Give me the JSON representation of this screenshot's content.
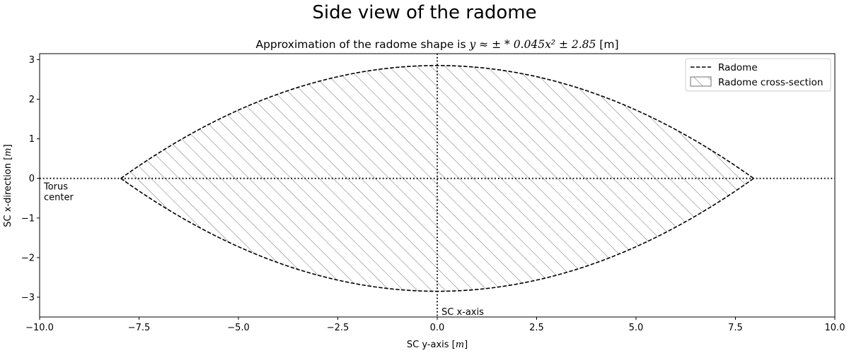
{
  "figure": {
    "suptitle": "Side view of the radome",
    "subtitle": {
      "prefix": "Approximation of the radome shape is ",
      "formula": "y ≈ ± * 0.045x² ± 2.85",
      "unit": " [m]"
    }
  },
  "chart_data": {
    "type": "line",
    "title": "Side view of the radome",
    "subtitle": "Approximation of the radome shape is y ≈ ± * 0.045x² ± 2.85 [m]",
    "xlabel": "SC y-axis [m]",
    "ylabel": "SC x-direction [m]",
    "xlim": [
      -10,
      10
    ],
    "ylim": [
      -3.5,
      3.15
    ],
    "xticks": [
      -10,
      -7.5,
      -5,
      -2.5,
      0,
      2.5,
      5,
      7.5,
      10
    ],
    "xtick_labels": [
      "−10.0",
      "−7.5",
      "−5.0",
      "−2.5",
      "0.0",
      "2.5",
      "5.0",
      "7.5",
      "10.0"
    ],
    "yticks": [
      -3,
      -2,
      -1,
      0,
      1,
      2,
      3
    ],
    "ytick_labels": [
      "−3",
      "−2",
      "−1",
      "0",
      "1",
      "2",
      "3"
    ],
    "grid": false,
    "legend_position": "top-right",
    "shape": {
      "coefficient": 0.045,
      "offset": 2.85,
      "x_range": [
        -7.96,
        7.96
      ]
    },
    "series": [
      {
        "name": "Radome",
        "style": "dashed",
        "color": "#000000"
      },
      {
        "name": "Radome cross-section",
        "style": "hatch",
        "color": "#777777"
      }
    ],
    "reference_lines": [
      {
        "orientation": "horizontal",
        "value": 0,
        "style": "dotted"
      },
      {
        "orientation": "vertical",
        "value": 0,
        "style": "dotted"
      }
    ],
    "annotations": [
      {
        "lines": [
          "Torus",
          "center"
        ]
      },
      {
        "lines": [
          "SC x-axis"
        ]
      }
    ]
  }
}
